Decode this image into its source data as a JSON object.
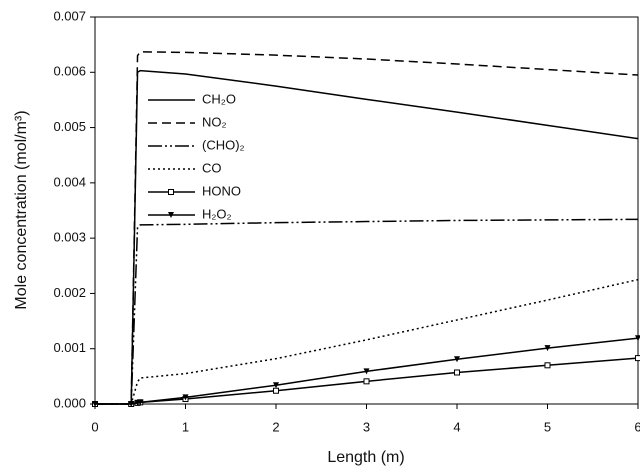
{
  "chart_data": {
    "type": "line",
    "xlabel": "Length (m)",
    "ylabel": "Mole concentration (mol/m³)",
    "x": [
      0,
      0.4,
      0.47,
      0.5,
      1,
      2,
      3,
      4,
      5,
      6
    ],
    "series": [
      {
        "name": "CH₂O",
        "color": "#000000",
        "dash": "solid",
        "values": [
          0,
          0,
          0.006,
          0.00603,
          0.00597,
          0.00575,
          0.00551,
          0.00528,
          0.00504,
          0.0048
        ]
      },
      {
        "name": "NO₂",
        "color": "#000000",
        "dash": "dashed",
        "values": [
          0,
          0,
          0.0063,
          0.00637,
          0.00636,
          0.00631,
          0.00624,
          0.00615,
          0.00605,
          0.00595
        ]
      },
      {
        "name": "(CHO)₂",
        "color": "#000000",
        "dash": "dashdotdot",
        "values": [
          0,
          0,
          0.0032,
          0.00324,
          0.00325,
          0.00328,
          0.0033,
          0.00332,
          0.00333,
          0.00334
        ]
      },
      {
        "name": "CO",
        "color": "#000000",
        "dash": "dotted",
        "values": [
          0,
          0,
          0.0004,
          0.00047,
          0.00055,
          0.00082,
          0.00116,
          0.00152,
          0.00188,
          0.00225
        ]
      },
      {
        "name": "HONO",
        "color": "#000000",
        "dash": "solid",
        "marker": "square",
        "values": [
          0,
          0,
          2e-05,
          3e-05,
          9e-05,
          0.00024,
          0.00041,
          0.00057,
          0.0007,
          0.00083
        ]
      },
      {
        "name": "H₂O₂",
        "color": "#000000",
        "dash": "solid",
        "marker": "triangle",
        "values": [
          0,
          0,
          2e-05,
          3e-05,
          0.00012,
          0.00034,
          0.00059,
          0.00081,
          0.00101,
          0.00119
        ]
      }
    ],
    "xlim": [
      0,
      6
    ],
    "xticks": [
      0,
      1,
      2,
      3,
      4,
      5,
      6
    ],
    "ylim": [
      0,
      0.007
    ],
    "yticks": [
      {
        "value": 0,
        "label": "0.000"
      },
      {
        "value": 0.001,
        "label": "0.001"
      },
      {
        "value": 0.002,
        "label": "0.002"
      },
      {
        "value": 0.003,
        "label": "0.003"
      },
      {
        "value": 0.004,
        "label": "0.004"
      },
      {
        "value": 0.005,
        "label": "0.005"
      },
      {
        "value": 0.006,
        "label": "0.006"
      },
      {
        "value": 0.007,
        "label": "0.007"
      }
    ],
    "legend": "upper-left",
    "grid": false
  }
}
